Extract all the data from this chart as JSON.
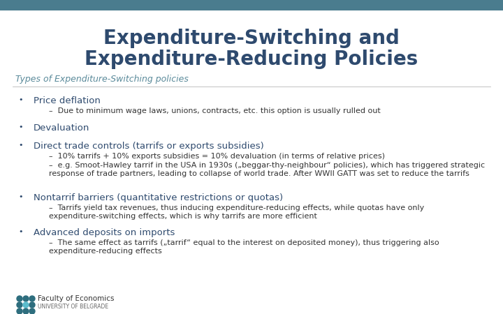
{
  "title_line1": "Expenditure-Switching and",
  "title_line2": "Expenditure-Reducing Policies",
  "title_color": "#2E4A6E",
  "header_bar_color": "#4A7C8E",
  "background_color": "#FFFFFF",
  "subtitle": "Types of Expenditure-Switching policies",
  "subtitle_color": "#5A8A9A",
  "text_color": "#2E4A6E",
  "body_color": "#333333",
  "items": [
    {
      "text": "Price deflation",
      "sub": [
        "–  Due to minimum wage laws, unions, contracts, etc. this option is usually rulled out"
      ]
    },
    {
      "text": "Devaluation",
      "sub": []
    },
    {
      "text": "Direct trade controls (tarrifs or exports subsidies)",
      "sub": [
        "–  10% tarrifs + 10% exports subsidies = 10% devaluation (in terms of relative prices)",
        "–  e.g. Smoot-Hawley tarrif in the USA in 1930s („beggar-thy-neighbour“ policies), which has triggered strategic response of trade partners, leading to collapse of world trade. After WWII GATT was set to reduce the tarrifs"
      ]
    },
    {
      "text": "Nontarrif barriers (quantitative restrictions or quotas)",
      "sub": [
        "–  Tarrifs yield tax revenues, thus inducing expenditure-reducing effects, while quotas have only expenditure-switching effects, which is why tarrifs are more efficient"
      ]
    },
    {
      "text": "Advanced deposits on imports",
      "sub": [
        "–  The same effect as tarrifs („tarrif“ equal to the interest on deposited money), thus triggering also expenditure-reducing effects"
      ]
    }
  ],
  "footer_text1": "Faculty of Economics",
  "footer_text2": "UNIVERSITY OF BELGRADE",
  "footer_color1": "#333333",
  "footer_color2": "#666666"
}
